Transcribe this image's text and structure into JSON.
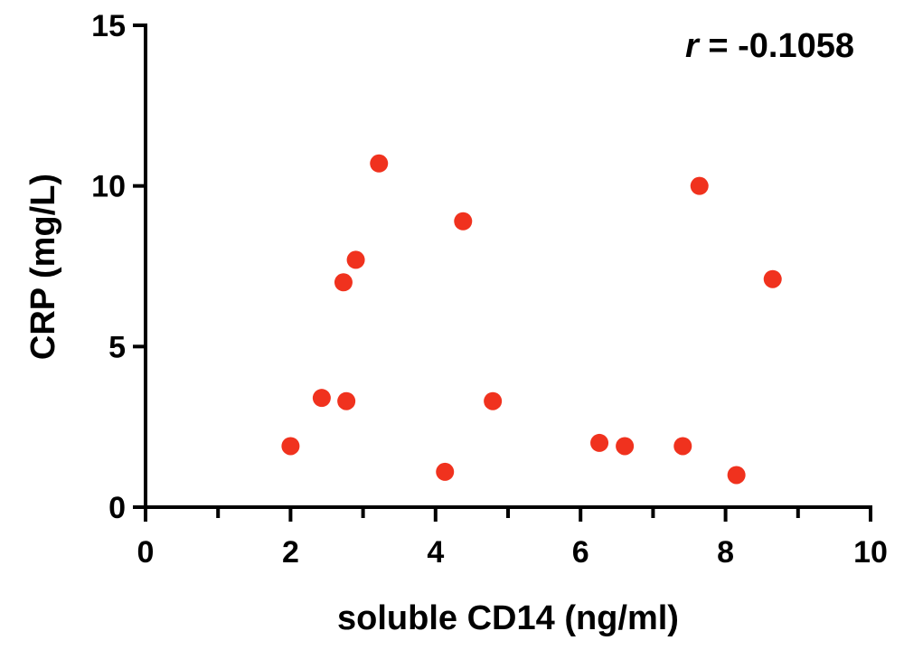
{
  "chart_data": {
    "type": "scatter",
    "title": "",
    "xlabel": "soluble CD14 (ng/ml)",
    "ylabel": "CRP (mg/L)",
    "xlim": [
      0,
      10
    ],
    "ylim": [
      0,
      15
    ],
    "x_ticks": [
      "0",
      "2",
      "4",
      "6",
      "8",
      "10"
    ],
    "y_ticks": [
      "0",
      "5",
      "10",
      "15"
    ],
    "grid": false,
    "marker_color": "#f0321e",
    "annotation": {
      "symbol": "r",
      "equals": " = ",
      "value": "-0.1058"
    },
    "series": [
      {
        "x": [
          2.0,
          2.43,
          2.73,
          2.77,
          2.9,
          3.22,
          4.13,
          4.38,
          4.79,
          6.26,
          6.61,
          7.41,
          7.64,
          8.15,
          8.65
        ],
        "y": [
          1.9,
          3.4,
          7.0,
          3.3,
          7.7,
          10.7,
          1.1,
          8.9,
          3.3,
          2.0,
          1.9,
          1.9,
          10.0,
          1.0,
          7.1
        ]
      }
    ]
  }
}
